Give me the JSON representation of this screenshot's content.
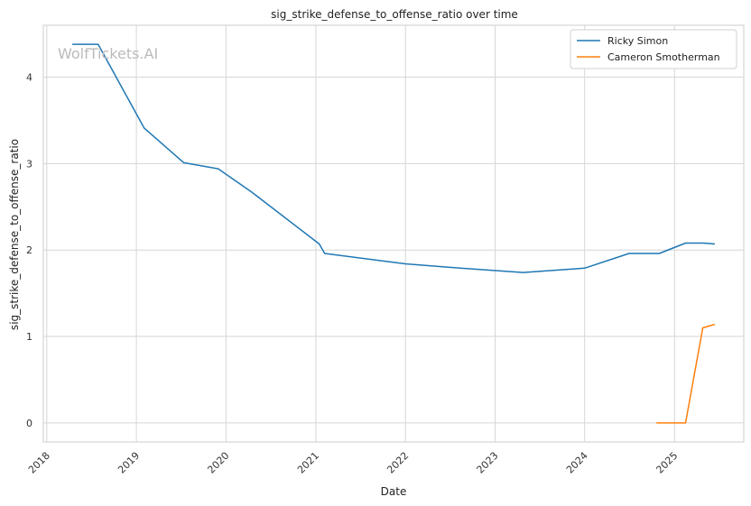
{
  "chart_data": {
    "type": "line",
    "title": "sig_strike_defense_to_offense_ratio over time",
    "xlabel": "Date",
    "ylabel": "sig_strike_defense_to_offense_ratio",
    "watermark": "WolfTickets.AI",
    "x_type": "date",
    "xlim": [
      "2017-12-18",
      "2025-10-10"
    ],
    "ylim": [
      -0.22,
      4.6
    ],
    "x_ticks": [
      "2018",
      "2019",
      "2020",
      "2021",
      "2022",
      "2023",
      "2024",
      "2025"
    ],
    "y_ticks": [
      0,
      1,
      2,
      3,
      4
    ],
    "grid": true,
    "legend": "top-right",
    "series": [
      {
        "name": "Ricky Simon",
        "color": "#1f77b4",
        "points": [
          [
            "2018-04-15",
            4.38
          ],
          [
            "2018-07-29",
            4.38
          ],
          [
            "2019-02-02",
            3.41
          ],
          [
            "2019-07-13",
            3.01
          ],
          [
            "2019-11-30",
            2.94
          ],
          [
            "2020-04-15",
            2.67
          ],
          [
            "2021-01-15",
            2.07
          ],
          [
            "2021-02-06",
            1.96
          ],
          [
            "2021-12-31",
            1.84
          ],
          [
            "2022-06-30",
            1.8
          ],
          [
            "2023-04-25",
            1.74
          ],
          [
            "2024-01-01",
            1.79
          ],
          [
            "2024-06-30",
            1.96
          ],
          [
            "2024-10-31",
            1.96
          ],
          [
            "2025-02-15",
            2.08
          ],
          [
            "2025-04-30",
            2.08
          ],
          [
            "2025-06-14",
            2.07
          ]
        ]
      },
      {
        "name": "Cameron Smotherman",
        "color": "#ff7f0e",
        "points": [
          [
            "2024-10-19",
            0.0
          ],
          [
            "2025-02-15",
            0.0
          ],
          [
            "2025-04-26",
            1.1
          ],
          [
            "2025-06-14",
            1.14
          ]
        ]
      }
    ]
  }
}
